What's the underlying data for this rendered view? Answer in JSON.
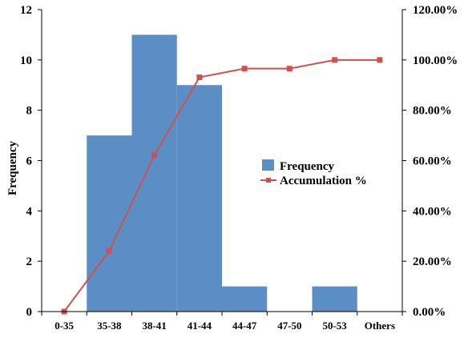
{
  "chart_data": {
    "type": "bar",
    "categories": [
      "0-35",
      "35-38",
      "38-41",
      "41-44",
      "44-47",
      "47-50",
      "50-53",
      "Others"
    ],
    "series": [
      {
        "name": "Frequency",
        "type": "bar",
        "axis": "left",
        "color": "#5b8ec4",
        "values": [
          0,
          7,
          11,
          9,
          1,
          0,
          1,
          0
        ]
      },
      {
        "name": "Accumulation %",
        "type": "line",
        "axis": "right",
        "color": "#d0504f",
        "marker": "square",
        "values": [
          0,
          24.14,
          62.07,
          93.1,
          96.55,
          96.55,
          100,
          100
        ]
      }
    ],
    "ylabel": "Frequency",
    "ylim": [
      0,
      12
    ],
    "yticks": [
      "0",
      "2",
      "4",
      "6",
      "8",
      "10",
      "12"
    ],
    "y2lim": [
      0,
      120
    ],
    "y2ticks": [
      "0.00%",
      "20.00%",
      "40.00%",
      "60.00%",
      "80.00%",
      "100.00%",
      "120.00%"
    ],
    "grid": false,
    "bar_gap": false,
    "legend_position": "center-right"
  }
}
